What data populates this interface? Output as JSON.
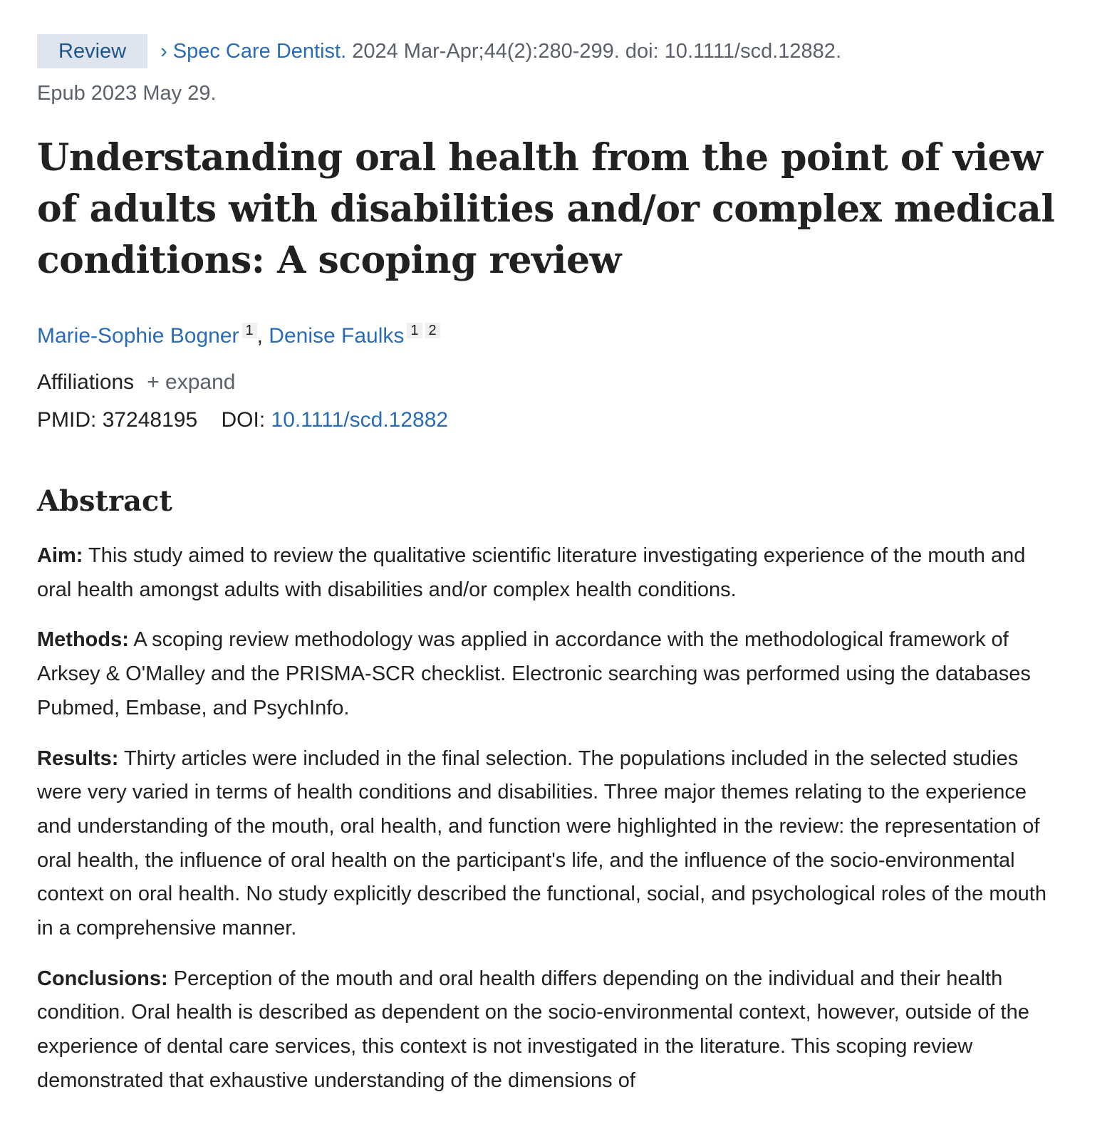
{
  "citation": {
    "badge": "Review",
    "journal": "Spec Care Dentist.",
    "details": " 2024 Mar-Apr;44(2):280-299. doi: 10.1111/scd.12882.",
    "epub": "Epub 2023 May 29."
  },
  "title": "Understanding oral health from the point of view of adults with disabilities and/or complex medical conditions: A scoping review",
  "authors": [
    {
      "name": "Marie-Sophie Bogner",
      "affs": [
        "1"
      ]
    },
    {
      "name": "Denise Faulks",
      "affs": [
        "1",
        "2"
      ]
    }
  ],
  "affiliations": {
    "label": "Affiliations",
    "expand": "expand"
  },
  "ids": {
    "pmid_label": "PMID:",
    "pmid": "37248195",
    "doi_label": "DOI:",
    "doi": "10.1111/scd.12882"
  },
  "abstract": {
    "heading": "Abstract",
    "sections": [
      {
        "label": "Aim:",
        "text": "This study aimed to review the qualitative scientific literature investigating experience of the mouth and oral health amongst adults with disabilities and/or complex health conditions."
      },
      {
        "label": "Methods:",
        "text": "A scoping review methodology was applied in accordance with the methodological framework of Arksey & O'Malley and the PRISMA-SCR checklist. Electronic searching was performed using the databases Pubmed, Embase, and PsychInfo."
      },
      {
        "label": "Results:",
        "text": "Thirty articles were included in the final selection. The populations included in the selected studies were very varied in terms of health conditions and disabilities. Three major themes relating to the experience and understanding of the mouth, oral health, and function were highlighted in the review: the representation of oral health, the influence of oral health on the participant's life, and the influence of the socio-environmental context on oral health. No study explicitly described the functional, social, and psychological roles of the mouth in a comprehensive manner."
      },
      {
        "label": "Conclusions:",
        "text": "Perception of the mouth and oral health differs depending on the individual and their health condition. Oral health is described as dependent on the socio-environmental context, however, outside of the experience of dental care services, this context is not investigated in the literature. This scoping review demonstrated that exhaustive understanding of the dimensions of"
      }
    ]
  }
}
